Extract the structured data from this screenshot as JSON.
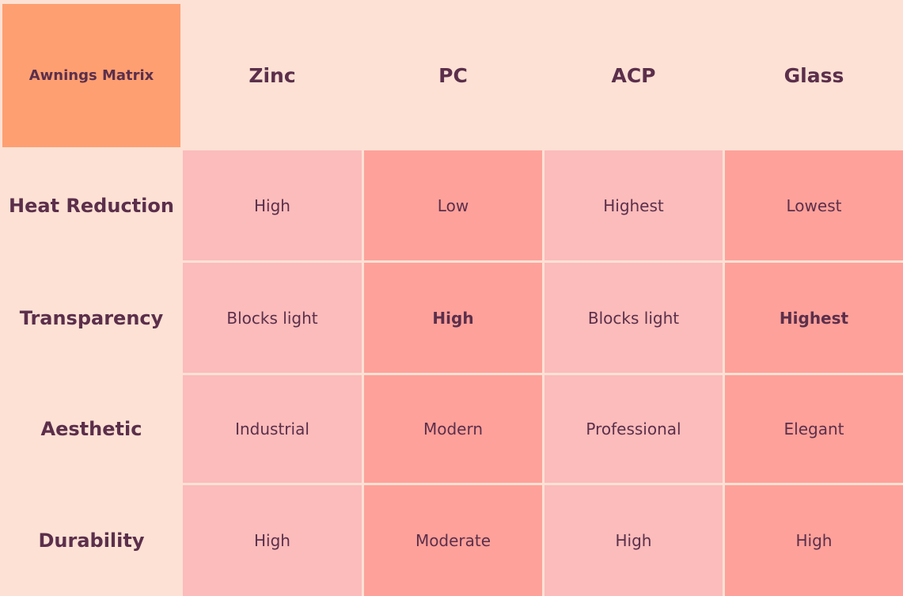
{
  "title": "Awnings Matrix",
  "columns": [
    "Zinc",
    "PC",
    "ACP",
    "Glass"
  ],
  "rows": [
    {
      "label": "Heat Reduction",
      "values": [
        "High",
        "Low",
        "Highest",
        "Lowest"
      ]
    },
    {
      "label": "Transparency",
      "values": [
        "Blocks light",
        "High",
        "Blocks light",
        "Highest"
      ]
    },
    {
      "label": "Aesthetic",
      "values": [
        "Industrial",
        "Modern",
        "Professional",
        "Elegant"
      ]
    },
    {
      "label": "Durability",
      "values": [
        "High",
        "Moderate",
        "High",
        "High"
      ]
    }
  ],
  "colors": {
    "background": "#fde1d4",
    "corner": "#fe9f72",
    "cell_light": "#fbbcbb",
    "cell_dark": "#fea19a",
    "text": "#5b2f4b"
  }
}
